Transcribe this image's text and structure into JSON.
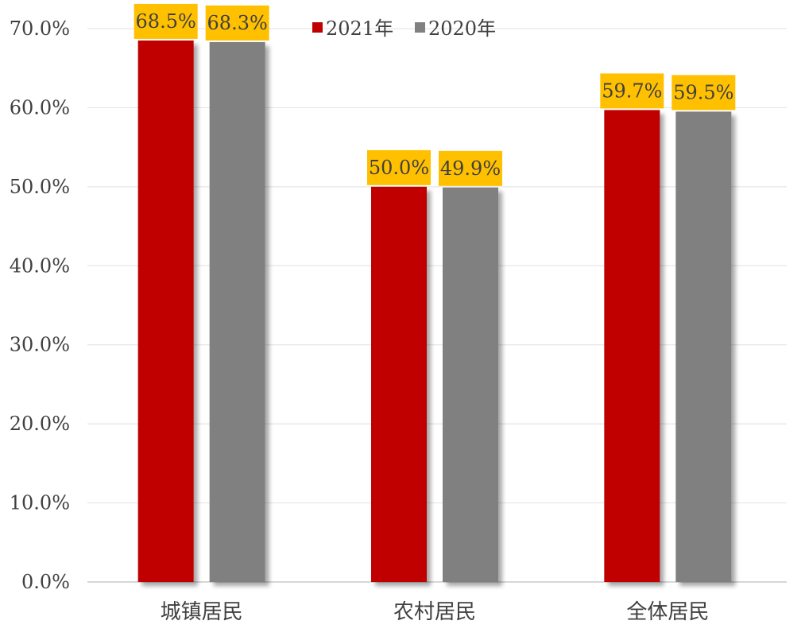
{
  "chart_data": {
    "type": "bar",
    "categories": [
      "城镇居民",
      "农村居民",
      "全体居民"
    ],
    "series": [
      {
        "name": "2021年",
        "color": "#c00000",
        "values": [
          68.5,
          50.0,
          59.7
        ],
        "labels": [
          "68.5%",
          "50.0%",
          "59.7%"
        ]
      },
      {
        "name": "2020年",
        "color": "#808080",
        "values": [
          68.3,
          49.9,
          59.5
        ],
        "labels": [
          "68.3%",
          "49.9%",
          "59.5%"
        ]
      }
    ],
    "ylim": [
      0,
      70
    ],
    "yticks": [
      0,
      10,
      20,
      30,
      40,
      50,
      60,
      70
    ],
    "ytick_labels": [
      "0.0%",
      "10.0%",
      "20.0%",
      "30.0%",
      "40.0%",
      "50.0%",
      "60.0%",
      "70.0%"
    ],
    "title": "",
    "xlabel": "",
    "ylabel": "",
    "grid": true,
    "legend_position": "top-center",
    "data_label_background": "#ffc000"
  }
}
